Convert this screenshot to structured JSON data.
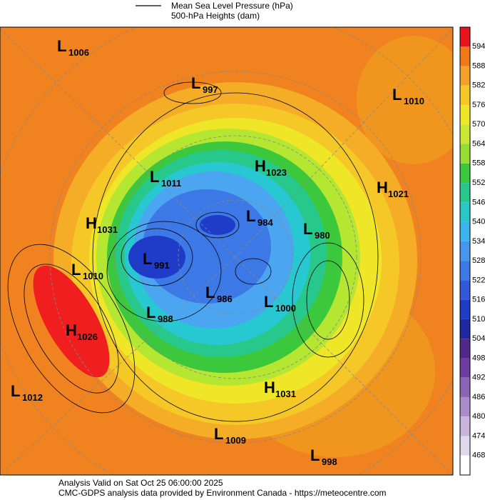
{
  "legend": {
    "line_label": "Mean Sea Level Pressure (hPa)",
    "fill_label": "500-hPa Heights (dam)"
  },
  "pressure_centers": [
    {
      "kind": "L",
      "value": 1006
    },
    {
      "kind": "L",
      "value": 997
    },
    {
      "kind": "L",
      "value": 1010
    },
    {
      "kind": "H",
      "value": 1023
    },
    {
      "kind": "L",
      "value": 1011
    },
    {
      "kind": "H",
      "value": 1021
    },
    {
      "kind": "H",
      "value": 1031
    },
    {
      "kind": "L",
      "value": 984
    },
    {
      "kind": "L",
      "value": 980
    },
    {
      "kind": "L",
      "value": 991
    },
    {
      "kind": "L",
      "value": 1010
    },
    {
      "kind": "L",
      "value": 986
    },
    {
      "kind": "L",
      "value": 1000
    },
    {
      "kind": "L",
      "value": 988
    },
    {
      "kind": "H",
      "value": 1026
    },
    {
      "kind": "H",
      "value": 1031
    },
    {
      "kind": "L",
      "value": 1012
    },
    {
      "kind": "L",
      "value": 1009
    },
    {
      "kind": "L",
      "value": 998
    }
  ],
  "colorbar": {
    "ticks": [
      594,
      588,
      582,
      576,
      570,
      564,
      558,
      552,
      546,
      540,
      534,
      528,
      522,
      516,
      510,
      504,
      498,
      492,
      486,
      480,
      474,
      468
    ]
  },
  "footer": {
    "valid": "Analysis Valid on Sat Oct 25 06:00:00 2025",
    "credit": "CMC-GDPS analysis data provided by Environment Canada - https://meteocentre.com"
  }
}
